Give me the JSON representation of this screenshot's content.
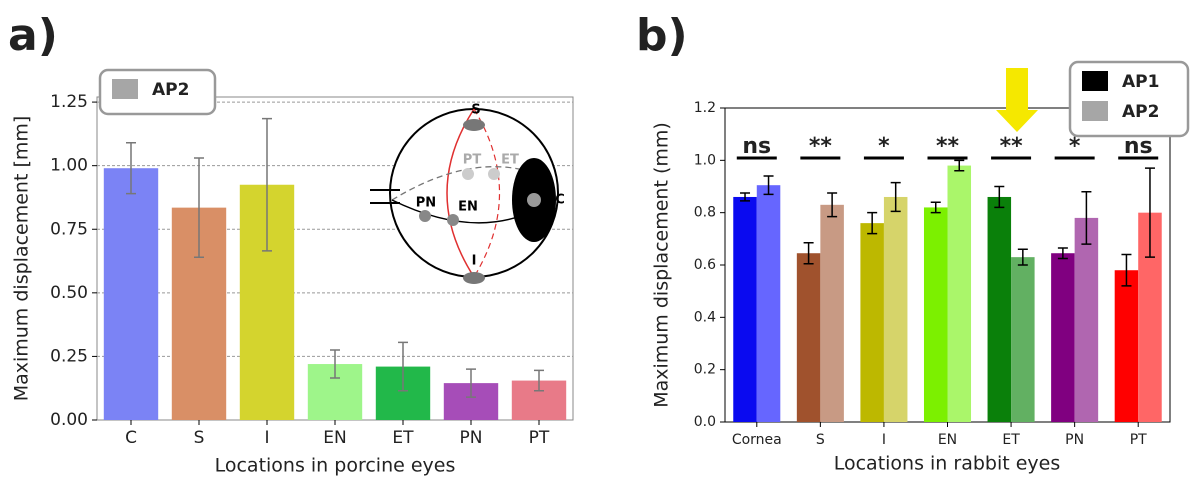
{
  "chart_data": [
    {
      "type": "bar",
      "panel_label": "a)",
      "x_label": "Locations in porcine eyes",
      "y_label": "Maximum displacement [mm]",
      "categories": [
        "C",
        "S",
        "I",
        "EN",
        "ET",
        "PN",
        "PT"
      ],
      "series": [
        {
          "name": "AP2",
          "color": "#a6a6a6",
          "colors": [
            "#7b83f5",
            "#d98f66",
            "#d4d42e",
            "#9ef58a",
            "#22b84a",
            "#a64db8",
            "#e87a88"
          ],
          "values": [
            0.99,
            0.835,
            0.925,
            0.22,
            0.21,
            0.145,
            0.155
          ],
          "errors": [
            0.1,
            0.195,
            0.26,
            0.055,
            0.095,
            0.055,
            0.04
          ]
        }
      ],
      "ylim": [
        0,
        1.27
      ],
      "yticks": [
        {
          "value": 0,
          "label": "0.00"
        },
        {
          "value": 0.25,
          "label": "0.25"
        },
        {
          "value": 0.5,
          "label": "0.50"
        },
        {
          "value": 0.75,
          "label": "0.75"
        },
        {
          "value": 1,
          "label": "1.00"
        },
        {
          "value": 1.25,
          "label": "1.25"
        }
      ],
      "grid": true,
      "legend": "upper left",
      "inset_labels": [
        "S",
        "PT",
        "ET",
        "PN",
        "EN",
        "I",
        "C"
      ]
    },
    {
      "type": "bar",
      "panel_label": "b)",
      "x_label": "Locations in rabbit eyes",
      "y_label": "Maximum displacement (mm)",
      "categories": [
        "Cornea",
        "S",
        "I",
        "EN",
        "ET",
        "PN",
        "PT"
      ],
      "series": [
        {
          "name": "AP1",
          "color": "#000000",
          "colors": [
            "#0a0af0",
            "#a0522d",
            "#bdb800",
            "#7cf000",
            "#0a800a",
            "#800080",
            "#ff0000"
          ],
          "values": [
            0.86,
            0.645,
            0.76,
            0.82,
            0.86,
            0.645,
            0.58
          ],
          "errors": [
            0.015,
            0.04,
            0.04,
            0.02,
            0.04,
            0.02,
            0.06
          ]
        },
        {
          "name": "AP2",
          "color": "#a6a6a6",
          "colors": [
            "#6666ff",
            "#c89a84",
            "#d6d46a",
            "#aaf66a",
            "#62b062",
            "#b066b0",
            "#ff6666"
          ],
          "values": [
            0.905,
            0.83,
            0.86,
            0.98,
            0.63,
            0.78,
            0.8
          ],
          "errors": [
            0.035,
            0.045,
            0.055,
            0.02,
            0.03,
            0.1,
            0.17
          ]
        }
      ],
      "ylim": [
        0,
        1.2
      ],
      "yticks": [
        {
          "value": 0,
          "label": "0.0"
        },
        {
          "value": 0.2,
          "label": "0.2"
        },
        {
          "value": 0.4,
          "label": "0.4"
        },
        {
          "value": 0.6,
          "label": "0.6"
        },
        {
          "value": 0.8,
          "label": "0.8"
        },
        {
          "value": 1,
          "label": "1.0"
        },
        {
          "value": 1.2,
          "label": "1.2"
        }
      ],
      "grid": false,
      "legend": "upper right",
      "significance": [
        "ns",
        "**",
        "*",
        "**",
        "**",
        "*",
        "ns"
      ]
    }
  ]
}
